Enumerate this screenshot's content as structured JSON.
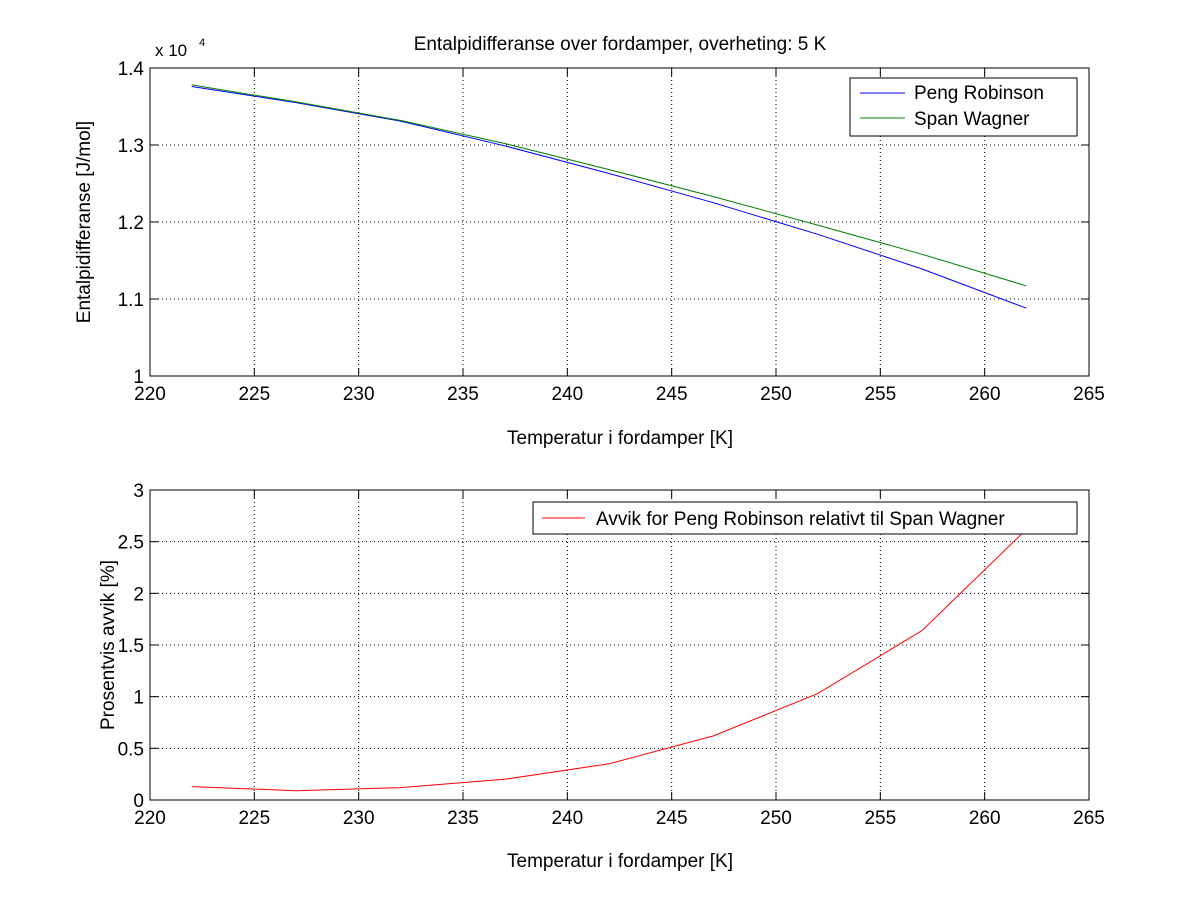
{
  "chart_data": [
    {
      "type": "line",
      "title": "Entalpidifferanse over fordamper, overheting: 5 K",
      "xlabel": "Temperatur i fordamper [K]",
      "ylabel": "Entalpidifferanse [J/mol]",
      "exponent_base": "x 10",
      "exponent_power": "4",
      "xlim": [
        220,
        265
      ],
      "ylim": [
        1.0,
        1.4
      ],
      "xticks": [
        220,
        225,
        230,
        235,
        240,
        245,
        250,
        255,
        260,
        265
      ],
      "xtick_labels": [
        "220",
        "225",
        "230",
        "235",
        "240",
        "245",
        "250",
        "255",
        "260",
        "265"
      ],
      "yticks": [
        1.0,
        1.1,
        1.2,
        1.3,
        1.4
      ],
      "ytick_labels": [
        "1",
        "1.1",
        "1.2",
        "1.3",
        "1.4"
      ],
      "grid": true,
      "legend_position": "top-right",
      "x": [
        222,
        227,
        232,
        237,
        242,
        247,
        252,
        257,
        262
      ],
      "series": [
        {
          "name": "Peng Robinson",
          "color": "#0000ff",
          "values": [
            1.376,
            1.355,
            1.331,
            1.299,
            1.263,
            1.225,
            1.184,
            1.139,
            1.088
          ]
        },
        {
          "name": "Span Wagner",
          "color": "#008000",
          "values": [
            1.378,
            1.356,
            1.332,
            1.302,
            1.268,
            1.233,
            1.196,
            1.158,
            1.117
          ]
        }
      ]
    },
    {
      "type": "line",
      "title": "",
      "xlabel": "Temperatur i fordamper [K]",
      "ylabel": "Prosentvis avvik [%]",
      "xlim": [
        220,
        265
      ],
      "ylim": [
        0,
        3
      ],
      "xticks": [
        220,
        225,
        230,
        235,
        240,
        245,
        250,
        255,
        260,
        265
      ],
      "xtick_labels": [
        "220",
        "225",
        "230",
        "235",
        "240",
        "245",
        "250",
        "255",
        "260",
        "265"
      ],
      "yticks": [
        0,
        0.5,
        1,
        1.5,
        2,
        2.5,
        3
      ],
      "ytick_labels": [
        "0",
        "0.5",
        "1",
        "1.5",
        "2",
        "2.5",
        "3"
      ],
      "grid": true,
      "legend_position": "top-right",
      "x": [
        222,
        227,
        232,
        237,
        242,
        247,
        252,
        257,
        262
      ],
      "series": [
        {
          "name": "Avvik for Peng Robinson relativt til Span Wagner",
          "color": "#ff0000",
          "values": [
            0.13,
            0.09,
            0.12,
            0.2,
            0.35,
            0.62,
            1.03,
            1.64,
            2.62
          ]
        }
      ]
    }
  ]
}
